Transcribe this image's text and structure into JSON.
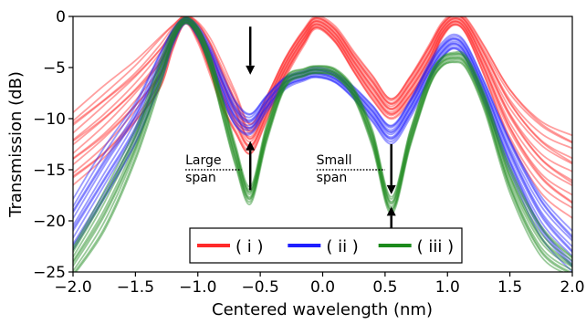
{
  "chart_data": {
    "type": "line",
    "xlabel": "Centered wavelength (nm)",
    "ylabel": "Transmission (dB)",
    "xlim": [
      -2.0,
      2.0
    ],
    "ylim": [
      -25,
      0
    ],
    "xticks": [
      -2.0,
      -1.5,
      -1.0,
      -0.5,
      0.0,
      0.5,
      1.0,
      1.5,
      2.0
    ],
    "xtick_labels": [
      "−2.0",
      "−1.5",
      "−1.0",
      "−0.5",
      "0.0",
      "0.5",
      "1.0",
      "1.5",
      "2.0"
    ],
    "yticks": [
      0,
      -5,
      -10,
      -15,
      -20,
      -25
    ],
    "ytick_labels": [
      "0",
      "−5",
      "−10",
      "−15",
      "−20",
      "−25"
    ],
    "grid": false,
    "legend_position": "bottom-center",
    "series": [
      {
        "name": "( i )",
        "color": "#ff2a2a",
        "curve_count": 16,
        "x": [
          -2.0,
          -1.75,
          -1.5,
          -1.3,
          -1.2,
          -1.1,
          -1.0,
          -0.9,
          -0.8,
          -0.7,
          -0.58,
          -0.45,
          -0.3,
          -0.15,
          -0.05,
          0.1,
          0.25,
          0.4,
          0.55,
          0.7,
          0.85,
          0.95,
          1.05,
          1.15,
          1.3,
          1.5,
          1.75,
          2.0
        ],
        "values": [
          -13,
          -10.5,
          -7.5,
          -4.5,
          -2.0,
          -0.3,
          -1.5,
          -4.0,
          -7.0,
          -9.5,
          -12.0,
          -9.0,
          -5.0,
          -2.0,
          -0.6,
          -1.8,
          -4.5,
          -7.0,
          -9.0,
          -7.0,
          -4.0,
          -1.5,
          -0.3,
          -1.0,
          -4.5,
          -9.5,
          -13.5,
          -15.5
        ],
        "spread_db": [
          3.5,
          3.5,
          3.0,
          2.5,
          1.2,
          0.4,
          1.0,
          1.8,
          2.2,
          2.0,
          1.5,
          1.2,
          1.0,
          0.8,
          0.6,
          0.8,
          1.0,
          1.2,
          1.0,
          1.2,
          1.2,
          0.8,
          0.6,
          0.8,
          1.5,
          2.5,
          3.5,
          4.0
        ]
      },
      {
        "name": "( ii )",
        "color": "#1f1fff",
        "curve_count": 12,
        "x": [
          -2.0,
          -1.75,
          -1.5,
          -1.3,
          -1.2,
          -1.1,
          -1.0,
          -0.9,
          -0.8,
          -0.7,
          -0.58,
          -0.45,
          -0.3,
          -0.15,
          -0.05,
          0.1,
          0.25,
          0.4,
          0.55,
          0.7,
          0.85,
          0.95,
          1.05,
          1.15,
          1.3,
          1.5,
          1.75,
          2.0
        ],
        "values": [
          -20.5,
          -15.5,
          -10.5,
          -5.0,
          -2.0,
          -0.4,
          -1.5,
          -4.0,
          -7.0,
          -9.5,
          -10.5,
          -8.5,
          -6.5,
          -5.8,
          -5.5,
          -6.0,
          -7.5,
          -9.5,
          -11.5,
          -9.0,
          -5.5,
          -3.5,
          -2.5,
          -3.5,
          -7.5,
          -13.5,
          -19.5,
          -23.0
        ],
        "spread_db": [
          2.5,
          2.5,
          2.0,
          1.5,
          0.8,
          0.3,
          0.6,
          1.0,
          1.2,
          1.2,
          1.0,
          0.8,
          0.6,
          0.5,
          0.5,
          0.5,
          0.6,
          0.8,
          0.9,
          0.9,
          0.9,
          0.8,
          0.7,
          0.8,
          1.0,
          1.5,
          2.0,
          2.0
        ]
      },
      {
        "name": "( iii )",
        "color": "#1c8a1c",
        "curve_count": 10,
        "x": [
          -2.0,
          -1.75,
          -1.5,
          -1.3,
          -1.2,
          -1.1,
          -1.0,
          -0.9,
          -0.8,
          -0.7,
          -0.58,
          -0.45,
          -0.3,
          -0.15,
          -0.05,
          0.1,
          0.25,
          0.4,
          0.55,
          0.7,
          0.85,
          0.95,
          1.05,
          1.15,
          1.3,
          1.5,
          1.75,
          2.0
        ],
        "values": [
          -24.0,
          -19.0,
          -12.5,
          -5.5,
          -2.0,
          -0.4,
          -1.5,
          -4.5,
          -9.0,
          -13.5,
          -17.5,
          -11.5,
          -6.5,
          -5.5,
          -5.2,
          -5.5,
          -7.5,
          -12.0,
          -18.5,
          -12.0,
          -6.5,
          -4.5,
          -4.0,
          -4.5,
          -8.5,
          -16.0,
          -22.0,
          -24.5
        ],
        "spread_db": [
          1.5,
          2.0,
          1.5,
          1.2,
          0.6,
          0.3,
          0.5,
          0.8,
          1.0,
          1.0,
          0.8,
          0.8,
          0.5,
          0.4,
          0.4,
          0.4,
          0.5,
          0.8,
          0.8,
          0.8,
          0.6,
          0.5,
          0.5,
          0.6,
          0.8,
          1.2,
          1.5,
          1.0
        ]
      }
    ],
    "annotations": [
      {
        "text_lines": [
          "Large",
          "span"
        ],
        "x": -1.1,
        "y": -15.0,
        "dotted_line_x": [
          -1.1,
          -0.65
        ]
      },
      {
        "text_lines": [
          "Small",
          "span"
        ],
        "x": -0.05,
        "y": -15.0,
        "dotted_line_x": [
          -0.05,
          0.5
        ]
      }
    ],
    "arrows": [
      {
        "x": -0.58,
        "from_y": -1.0,
        "to_y": -5.7
      },
      {
        "x": -0.58,
        "from_y": -17.0,
        "to_y": -12.2
      },
      {
        "x": 0.55,
        "from_y": -12.5,
        "to_y": -17.4
      },
      {
        "x": 0.55,
        "from_y": -22.5,
        "to_y": -18.6
      }
    ]
  }
}
